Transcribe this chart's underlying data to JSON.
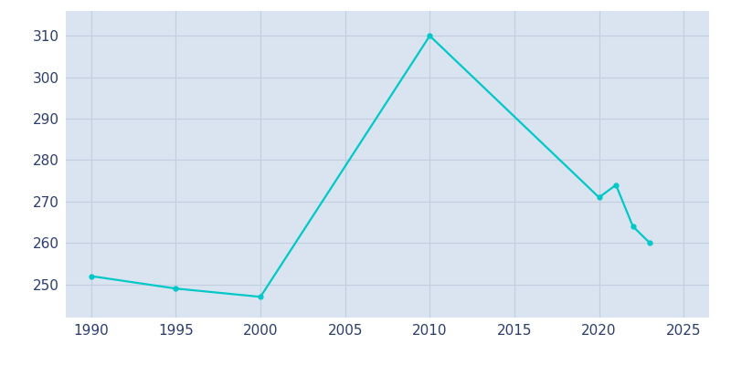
{
  "years": [
    1990,
    1995,
    2000,
    2010,
    2020,
    2021,
    2022,
    2023
  ],
  "population": [
    252,
    249,
    247,
    310,
    271,
    274,
    264,
    260
  ],
  "line_color": "#00C8C8",
  "marker_color": "#00C8C8",
  "fig_bg_color": "#FFFFFF",
  "plot_bg_color": "#DAE4F0",
  "grid_color": "#C0CEDF",
  "tick_color": "#2B3D6E",
  "xlim": [
    1988.5,
    2026.5
  ],
  "ylim": [
    242,
    316
  ],
  "yticks": [
    250,
    260,
    270,
    280,
    290,
    300,
    310
  ],
  "xticks": [
    1990,
    1995,
    2000,
    2005,
    2010,
    2015,
    2020,
    2025
  ],
  "line_width": 1.6,
  "marker_size": 3.5,
  "tick_fontsize": 11
}
